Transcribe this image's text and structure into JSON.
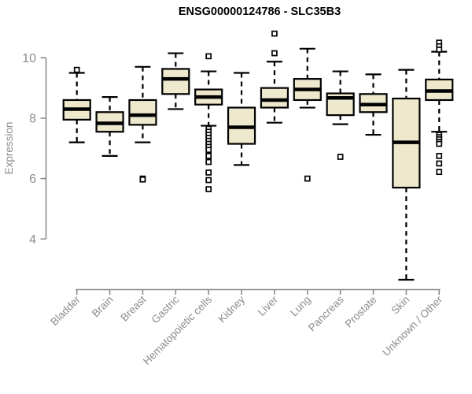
{
  "chart_data": {
    "type": "boxplot",
    "title": "ENSG00000124786 - SLC35B3",
    "ylabel": "Expression",
    "xlabel": "",
    "yticks": [
      4,
      6,
      8,
      10
    ],
    "axis_range_shown": [
      4,
      10
    ],
    "grid": false,
    "legend": "none",
    "box_fill_color": "#EEE8CD",
    "box_stroke_color": "#000000",
    "axis_color": "#8C8C8C",
    "title_color": "#000000",
    "categories": [
      "Bladder",
      "Brain",
      "Breast",
      "Gastric",
      "Hematopoietic cells",
      "Kidney",
      "Liver",
      "Lung",
      "Pancreas",
      "Prostate",
      "Skin",
      "Unknown / Other"
    ],
    "boxes": [
      {
        "category": "Bladder",
        "whisker_low": 7.2,
        "q1": 7.95,
        "median": 8.3,
        "q3": 8.6,
        "whisker_high": 9.5,
        "outliers": [
          9.6
        ]
      },
      {
        "category": "Brain",
        "whisker_low": 6.75,
        "q1": 7.55,
        "median": 7.83,
        "q3": 8.2,
        "whisker_high": 8.7,
        "outliers": []
      },
      {
        "category": "Breast",
        "whisker_low": 7.2,
        "q1": 7.78,
        "median": 8.1,
        "q3": 8.6,
        "whisker_high": 9.7,
        "outliers": [
          6.0,
          5.97
        ]
      },
      {
        "category": "Gastric",
        "whisker_low": 8.3,
        "q1": 8.8,
        "median": 9.3,
        "q3": 9.63,
        "whisker_high": 10.15,
        "outliers": []
      },
      {
        "category": "Hematopoietic cells",
        "whisker_low": 7.75,
        "q1": 8.45,
        "median": 8.7,
        "q3": 8.95,
        "whisker_high": 9.55,
        "outliers": [
          10.05,
          7.65,
          7.55,
          7.45,
          7.35,
          7.25,
          7.15,
          7.05,
          6.95,
          6.75,
          6.55,
          6.2,
          5.95,
          5.65
        ]
      },
      {
        "category": "Kidney",
        "whisker_low": 6.45,
        "q1": 7.15,
        "median": 7.7,
        "q3": 8.35,
        "whisker_high": 9.5,
        "outliers": []
      },
      {
        "category": "Liver",
        "whisker_low": 7.85,
        "q1": 8.35,
        "median": 8.6,
        "q3": 9.0,
        "whisker_high": 9.87,
        "outliers": [
          10.8,
          10.15
        ]
      },
      {
        "category": "Lung",
        "whisker_low": 8.35,
        "q1": 8.6,
        "median": 8.95,
        "q3": 9.3,
        "whisker_high": 10.3,
        "outliers": [
          6.0
        ]
      },
      {
        "category": "Pancreas",
        "whisker_low": 7.8,
        "q1": 8.1,
        "median": 8.67,
        "q3": 8.82,
        "whisker_high": 9.55,
        "outliers": [
          6.72
        ]
      },
      {
        "category": "Prostate",
        "whisker_low": 7.45,
        "q1": 8.2,
        "median": 8.45,
        "q3": 8.8,
        "whisker_high": 9.45,
        "outliers": []
      },
      {
        "category": "Skin",
        "whisker_low": 2.65,
        "q1": 5.7,
        "median": 7.2,
        "q3": 8.65,
        "whisker_high": 9.6,
        "outliers": []
      },
      {
        "category": "Unknown / Other",
        "whisker_low": 7.55,
        "q1": 8.6,
        "median": 8.9,
        "q3": 9.28,
        "whisker_high": 10.2,
        "outliers": [
          10.5,
          10.38,
          10.27,
          7.45,
          7.37,
          7.3,
          7.22,
          7.15,
          6.75,
          6.5,
          6.22
        ]
      }
    ]
  }
}
